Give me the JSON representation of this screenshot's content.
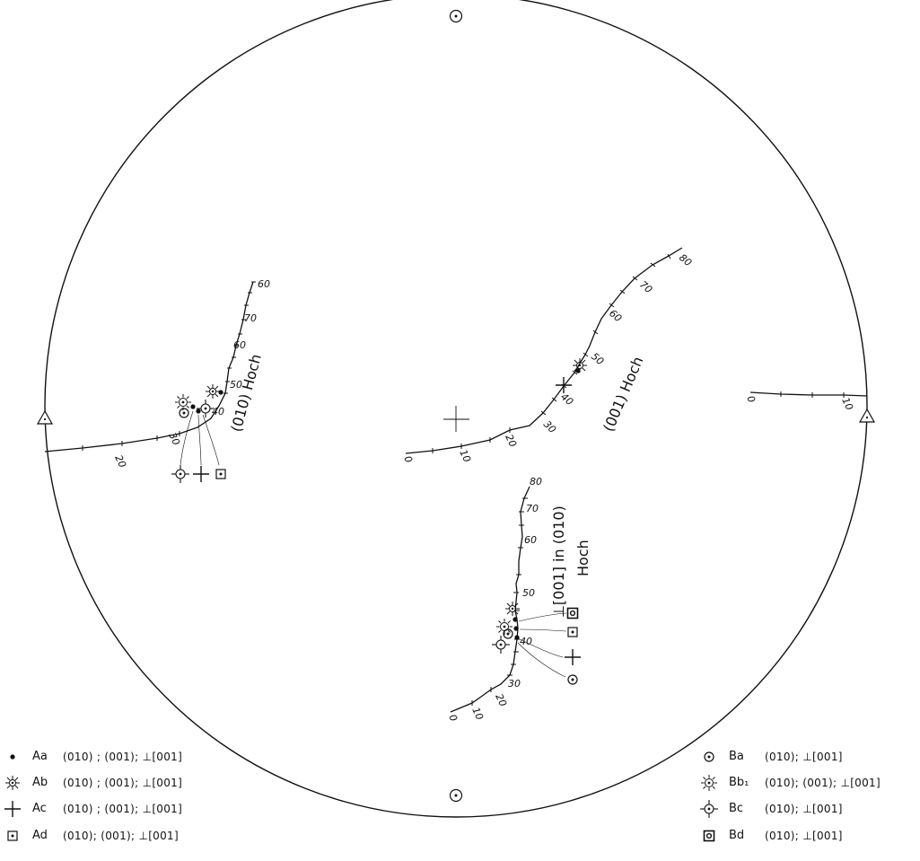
{
  "curves": {
    "c010": {
      "label": "(010) Hoch",
      "ticks": [
        "20",
        "30",
        "40",
        "50",
        "60",
        "70",
        "60"
      ]
    },
    "c001": {
      "label": "(001) Hoch",
      "ticks": [
        "0",
        "10",
        "20",
        "30",
        "40",
        "50",
        "60",
        "70",
        "80"
      ]
    },
    "cperp": {
      "label_line1": "⊥[001] in (010)",
      "label_line2": "Hoch",
      "ticks": [
        "0",
        "10",
        "20",
        "30",
        "40",
        "50",
        "60",
        "70",
        "80"
      ]
    },
    "cright": {
      "ticks": [
        "0",
        "10"
      ]
    }
  },
  "legend": {
    "left": [
      {
        "symbol": "dot-icon",
        "code": "Aa",
        "desc": "(010) ; (001); ⊥[001]"
      },
      {
        "symbol": "star-icon",
        "code": "Ab",
        "desc": "(010) ; (001); ⊥[001]"
      },
      {
        "symbol": "cross-icon",
        "code": "Ac",
        "desc": "(010) ; (001); ⊥[001]"
      },
      {
        "symbol": "dotted-square-icon",
        "code": "Ad",
        "desc": "(010); (001); ⊥[001]"
      }
    ],
    "right": [
      {
        "symbol": "dotted-circle-icon",
        "code": "Ba",
        "desc": "(010); ⊥[001]"
      },
      {
        "symbol": "sun-icon",
        "code": "Bb₁",
        "desc": "(010); (001); ⊥[001]"
      },
      {
        "symbol": "crossed-circle-icon",
        "code": "Bc",
        "desc": "(010); ⊥[001]"
      },
      {
        "symbol": "double-square-icon",
        "code": "Bd",
        "desc": "(010); ⊥[001]"
      }
    ]
  }
}
